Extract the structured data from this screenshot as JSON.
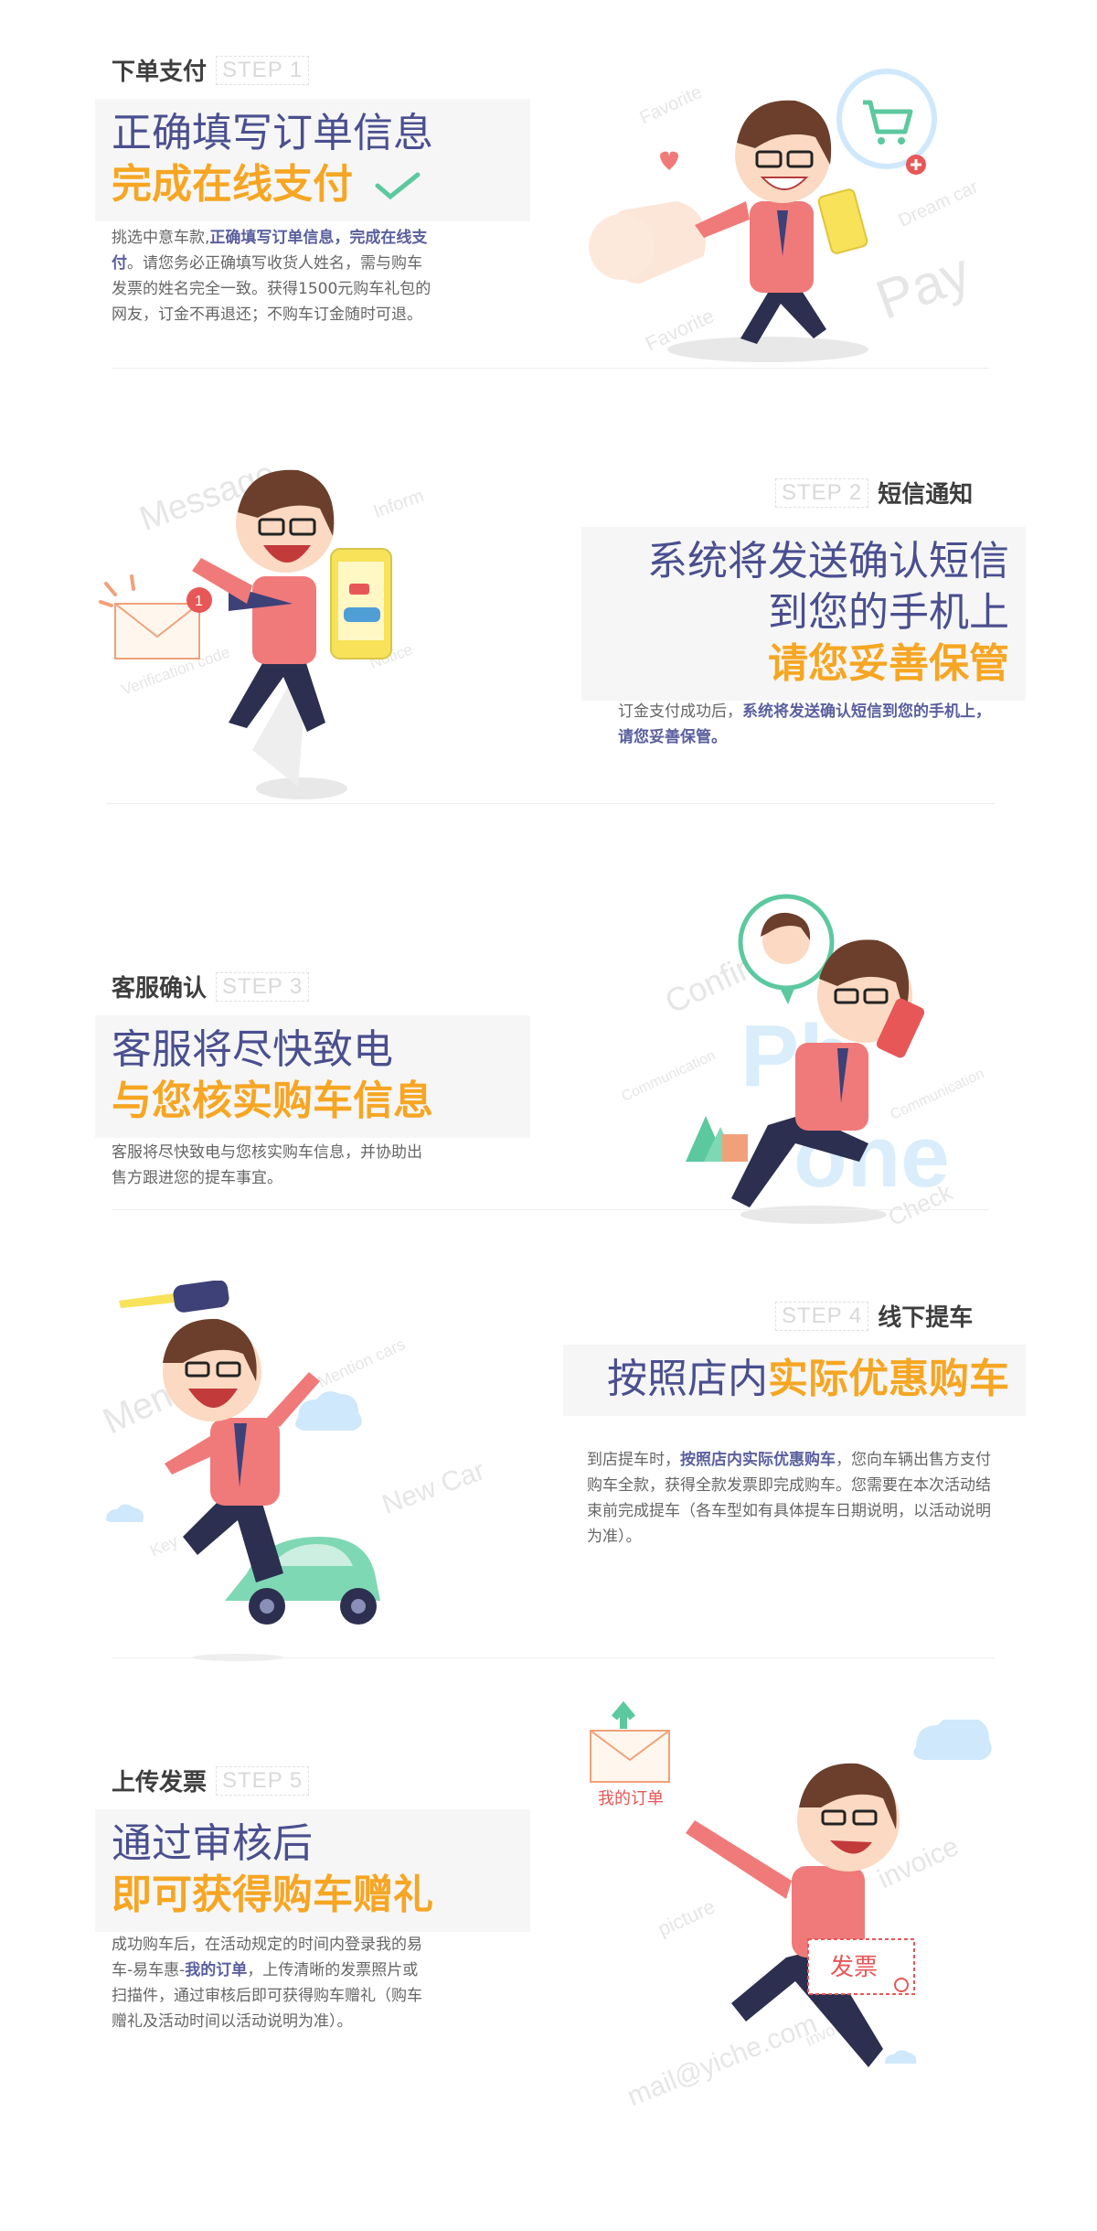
{
  "steps": [
    {
      "title": "下单支付",
      "badge": "STEP 1",
      "headline": [
        "正确填写订单信息",
        "完成在线支付"
      ],
      "desc": [
        {
          "t": "挑选中意车款,",
          "em": false
        },
        {
          "t": "正确填写订单信息，完成在线支付",
          "em": true
        },
        {
          "t": "。请您务必正确填写收货人姓名，需与购车发票的姓名完全一致。获得1500元购车礼包的网友，订金不再退还；不购车订金随时可退。",
          "em": false
        }
      ],
      "watermarks": [
        "Favorite",
        "Dream car",
        "Pay",
        "Favorite"
      ]
    },
    {
      "title": "短信通知",
      "badge": "STEP 2",
      "headline": [
        "系统将发送确认短信",
        "到您的手机上",
        "请您妥善保管"
      ],
      "desc": [
        {
          "t": "订金支付成功后，",
          "em": false
        },
        {
          "t": "系统将发送确认短信到您的手机上，请您妥善保管。",
          "em": true
        }
      ],
      "watermarks": [
        "Message",
        "Inform",
        "Verification code",
        "Notice"
      ]
    },
    {
      "title": "客服确认",
      "badge": "STEP 3",
      "headline": [
        "客服将尽快致电",
        "与您核实购车信息"
      ],
      "desc": [
        {
          "t": "客服将尽快致电与您核实购车信息，并协助出售方跟进您的提车事宜。",
          "em": false
        }
      ],
      "watermarks": [
        "Confirm",
        "Communication",
        "Communication",
        "Check",
        "Ph",
        "one"
      ]
    },
    {
      "title": "线下提车",
      "badge": "STEP 4",
      "headline": [
        "按照店内",
        "实际优惠购车"
      ],
      "desc": [
        {
          "t": "到店提车时，",
          "em": false
        },
        {
          "t": "按照店内实际优惠购车",
          "em": true
        },
        {
          "t": "，您向车辆出售方支付购车全款，获得全款发票即完成购车。您需要在本次活动结束前完成提车（各车型如有具体提车日期说明，以活动说明为准）。",
          "em": false
        }
      ],
      "watermarks": [
        "Mention cars",
        "New Car",
        "Key",
        "Men"
      ]
    },
    {
      "title": "上传发票",
      "badge": "STEP 5",
      "headline": [
        "通过审核后",
        "即可获得购车赠礼"
      ],
      "desc": [
        {
          "t": "成功购车后，在活动规定的时间内登录我的易车-易车惠-",
          "em": false
        },
        {
          "t": "我的订单",
          "em": true
        },
        {
          "t": "，上传清晰的发票照片或扫描件，通过审核后即可获得购车赠礼（购车赠礼及活动时间以活动说明为准）。",
          "em": false
        }
      ],
      "watermarks": [
        "invoice",
        "picture",
        "mail@yiche.com",
        "invoice"
      ],
      "labels": {
        "my_order": "我的订单",
        "invoice": "发票"
      }
    }
  ],
  "colors": {
    "navy": "#4a4f8f",
    "orange": "#f6a623",
    "pink": "#f07a7a",
    "green": "#5cc8a0",
    "blue": "#cfe8fb"
  }
}
